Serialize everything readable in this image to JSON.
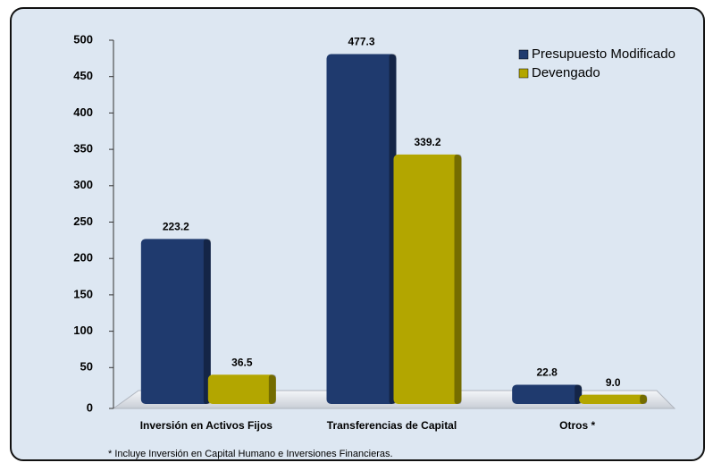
{
  "chart_data": {
    "type": "bar",
    "categories": [
      "Inversión en Activos Fijos",
      "Transferencias de Capital",
      "Otros *"
    ],
    "series": [
      {
        "name": "Presupuesto Modificado",
        "color": "#1f3a6e",
        "values": [
          223.2,
          477.3,
          22.8
        ],
        "value_labels": [
          "223.2",
          "477.3",
          "22.8"
        ]
      },
      {
        "name": "Devengado",
        "color": "#b3a600",
        "values": [
          36.5,
          339.2,
          9.0
        ],
        "value_labels": [
          "36.5",
          "339.2",
          "9.0"
        ]
      }
    ],
    "ylim": [
      0,
      500
    ],
    "yticks": [
      0,
      50,
      100,
      150,
      200,
      250,
      300,
      350,
      400,
      450,
      500
    ],
    "legend": "top-right",
    "footnote": "* Incluye Inversión en Capital Humano e Inversiones Financieras."
  }
}
